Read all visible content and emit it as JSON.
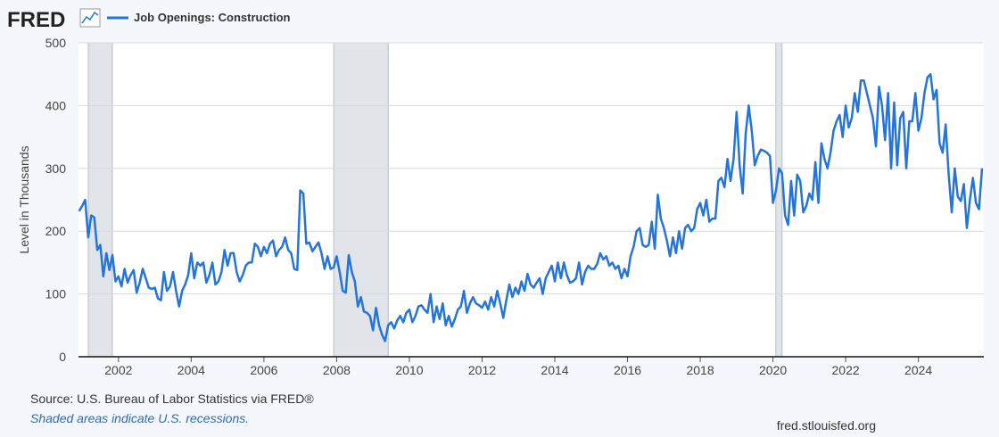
{
  "logo": "FRED",
  "source": "Source: U.S. Bureau of Labor Statistics via FRED®",
  "note": "Shaded areas indicate U.S. recessions.",
  "url": "fred.stlouisfed.org",
  "chart_data": {
    "type": "line",
    "y_label": "Level in Thousands",
    "xlim": [
      2000.9,
      2025.8
    ],
    "xticks": [
      2002,
      2004,
      2006,
      2008,
      2010,
      2012,
      2014,
      2016,
      2018,
      2020,
      2022,
      2024
    ],
    "ylim": [
      0,
      500
    ],
    "yticks": [
      0,
      100,
      200,
      300,
      400,
      500
    ],
    "grid": true,
    "shaded_periods": [
      [
        2001.17,
        2001.83
      ],
      [
        2007.92,
        2009.42
      ],
      [
        2020.08,
        2020.25
      ]
    ],
    "x": [
      2000.917,
      2001,
      2001.083,
      2001.167,
      2001.25,
      2001.333,
      2001.417,
      2001.5,
      2001.583,
      2001.667,
      2001.75,
      2001.833,
      2001.917,
      2002,
      2002.083,
      2002.167,
      2002.25,
      2002.333,
      2002.417,
      2002.5,
      2002.583,
      2002.667,
      2002.75,
      2002.833,
      2002.917,
      2003,
      2003.083,
      2003.167,
      2003.25,
      2003.333,
      2003.417,
      2003.5,
      2003.583,
      2003.667,
      2003.75,
      2003.833,
      2003.917,
      2004,
      2004.083,
      2004.167,
      2004.25,
      2004.333,
      2004.417,
      2004.5,
      2004.583,
      2004.667,
      2004.75,
      2004.833,
      2004.917,
      2005,
      2005.083,
      2005.167,
      2005.25,
      2005.333,
      2005.417,
      2005.5,
      2005.583,
      2005.667,
      2005.75,
      2005.833,
      2005.917,
      2006,
      2006.083,
      2006.167,
      2006.25,
      2006.333,
      2006.417,
      2006.5,
      2006.583,
      2006.667,
      2006.75,
      2006.833,
      2006.917,
      2007,
      2007.083,
      2007.167,
      2007.25,
      2007.333,
      2007.417,
      2007.5,
      2007.583,
      2007.667,
      2007.75,
      2007.833,
      2007.917,
      2008,
      2008.083,
      2008.167,
      2008.25,
      2008.333,
      2008.417,
      2008.5,
      2008.583,
      2008.667,
      2008.75,
      2008.833,
      2008.917,
      2009,
      2009.083,
      2009.167,
      2009.25,
      2009.333,
      2009.417,
      2009.5,
      2009.583,
      2009.667,
      2009.75,
      2009.833,
      2009.917,
      2010,
      2010.083,
      2010.167,
      2010.25,
      2010.333,
      2010.417,
      2010.5,
      2010.583,
      2010.667,
      2010.75,
      2010.833,
      2010.917,
      2011,
      2011.083,
      2011.167,
      2011.25,
      2011.333,
      2011.417,
      2011.5,
      2011.583,
      2011.667,
      2011.75,
      2011.833,
      2011.917,
      2012,
      2012.083,
      2012.167,
      2012.25,
      2012.333,
      2012.417,
      2012.5,
      2012.583,
      2012.667,
      2012.75,
      2012.833,
      2012.917,
      2013,
      2013.083,
      2013.167,
      2013.25,
      2013.333,
      2013.417,
      2013.5,
      2013.583,
      2013.667,
      2013.75,
      2013.833,
      2013.917,
      2014,
      2014.083,
      2014.167,
      2014.25,
      2014.333,
      2014.417,
      2014.5,
      2014.583,
      2014.667,
      2014.75,
      2014.833,
      2014.917,
      2015,
      2015.083,
      2015.167,
      2015.25,
      2015.333,
      2015.417,
      2015.5,
      2015.583,
      2015.667,
      2015.75,
      2015.833,
      2015.917,
      2016,
      2016.083,
      2016.167,
      2016.25,
      2016.333,
      2016.417,
      2016.5,
      2016.583,
      2016.667,
      2016.75,
      2016.833,
      2016.917,
      2017,
      2017.083,
      2017.167,
      2017.25,
      2017.333,
      2017.417,
      2017.5,
      2017.583,
      2017.667,
      2017.75,
      2017.833,
      2017.917,
      2018,
      2018.083,
      2018.167,
      2018.25,
      2018.333,
      2018.417,
      2018.5,
      2018.583,
      2018.667,
      2018.75,
      2018.833,
      2018.917,
      2019,
      2019.083,
      2019.167,
      2019.25,
      2019.333,
      2019.417,
      2019.5,
      2019.583,
      2019.667,
      2019.75,
      2019.833,
      2019.917,
      2020,
      2020.083,
      2020.167,
      2020.25,
      2020.333,
      2020.417,
      2020.5,
      2020.583,
      2020.667,
      2020.75,
      2020.833,
      2020.917,
      2021,
      2021.083,
      2021.167,
      2021.25,
      2021.333,
      2021.417,
      2021.5,
      2021.583,
      2021.667,
      2021.75,
      2021.833,
      2021.917,
      2022,
      2022.083,
      2022.167,
      2022.25,
      2022.333,
      2022.417,
      2022.5,
      2022.583,
      2022.667,
      2022.75,
      2022.833,
      2022.917,
      2023,
      2023.083,
      2023.167,
      2023.25,
      2023.333,
      2023.417,
      2023.5,
      2023.583,
      2023.667,
      2023.75,
      2023.833,
      2023.917,
      2024,
      2024.083,
      2024.167,
      2024.25,
      2024.333,
      2024.417,
      2024.5,
      2024.583,
      2024.667,
      2024.75,
      2024.833,
      2024.917,
      2025,
      2025.083,
      2025.167,
      2025.25,
      2025.333,
      2025.417,
      2025.5,
      2025.583,
      2025.667,
      2025.75
    ],
    "series": [
      {
        "name": "Job Openings: Construction",
        "color": "#2474d9",
        "values": [
          232,
          240,
          250,
          190,
          225,
          222,
          170,
          178,
          128,
          165,
          138,
          162,
          120,
          128,
          112,
          140,
          118,
          130,
          138,
          102,
          118,
          140,
          125,
          110,
          108,
          110,
          93,
          90,
          135,
          105,
          112,
          135,
          105,
          80,
          105,
          115,
          130,
          165,
          125,
          150,
          145,
          150,
          118,
          130,
          150,
          115,
          120,
          135,
          170,
          145,
          165,
          165,
          135,
          120,
          130,
          145,
          150,
          150,
          180,
          175,
          160,
          175,
          165,
          180,
          185,
          160,
          170,
          175,
          190,
          170,
          165,
          140,
          138,
          265,
          260,
          180,
          182,
          168,
          175,
          182,
          165,
          140,
          160,
          140,
          142,
          160,
          135,
          105,
          102,
          162,
          135,
          120,
          80,
          95,
          72,
          70,
          65,
          42,
          78,
          50,
          35,
          25,
          50,
          55,
          45,
          58,
          65,
          55,
          70,
          75,
          55,
          65,
          80,
          82,
          75,
          70,
          100,
          55,
          80,
          60,
          85,
          50,
          65,
          48,
          60,
          75,
          80,
          105,
          70,
          85,
          95,
          85,
          82,
          78,
          88,
          75,
          95,
          80,
          105,
          85,
          62,
          90,
          115,
          95,
          110,
          100,
          120,
          105,
          132,
          115,
          110,
          118,
          125,
          100,
          125,
          135,
          145,
          120,
          150,
          125,
          150,
          130,
          118,
          120,
          125,
          150,
          115,
          135,
          145,
          140,
          140,
          148,
          165,
          155,
          160,
          145,
          150,
          140,
          145,
          125,
          140,
          128,
          160,
          175,
          200,
          205,
          178,
          175,
          178,
          215,
          172,
          258,
          220,
          205,
          185,
          160,
          190,
          165,
          200,
          172,
          205,
          210,
          200,
          205,
          235,
          245,
          225,
          250,
          215,
          220,
          220,
          280,
          285,
          270,
          315,
          280,
          315,
          390,
          305,
          260,
          355,
          400,
          360,
          305,
          320,
          330,
          328,
          325,
          320,
          245,
          265,
          300,
          292,
          225,
          210,
          280,
          225,
          290,
          280,
          230,
          240,
          260,
          250,
          310,
          245,
          340,
          315,
          300,
          325,
          360,
          375,
          385,
          350,
          400,
          365,
          380,
          420,
          390,
          440,
          440,
          420,
          400,
          380,
          335,
          430,
          400,
          345,
          420,
          300,
          405,
          305,
          380,
          390,
          300,
          375,
          375,
          420,
          360,
          380,
          420,
          445,
          450,
          410,
          425,
          340,
          325,
          370,
          290,
          230,
          300,
          255,
          248,
          275,
          205,
          250,
          285,
          245,
          235,
          300
        ]
      }
    ]
  }
}
